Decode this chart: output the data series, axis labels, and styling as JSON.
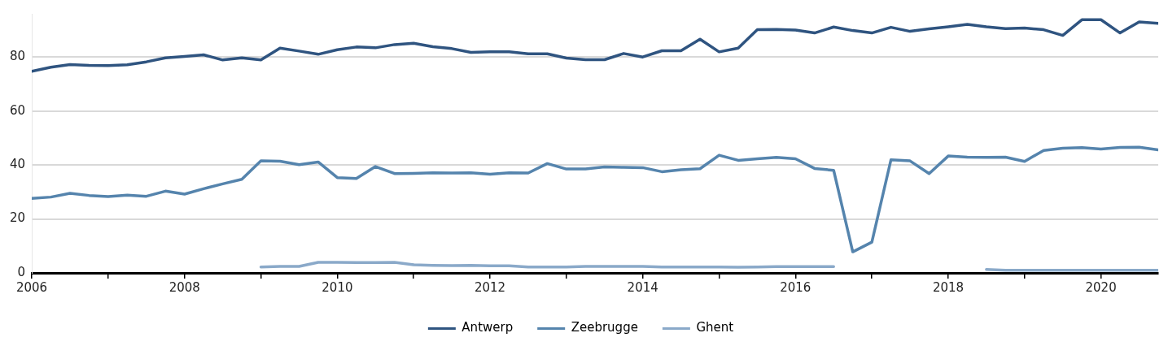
{
  "chart_data": {
    "type": "line",
    "x": [
      2006,
      2006.25,
      2006.5,
      2006.75,
      2007,
      2007.25,
      2007.5,
      2007.75,
      2008,
      2008.25,
      2008.5,
      2008.75,
      2009,
      2009.25,
      2009.5,
      2009.75,
      2010,
      2010.25,
      2010.5,
      2010.75,
      2011,
      2011.25,
      2011.5,
      2011.75,
      2012,
      2012.25,
      2012.5,
      2012.75,
      2013,
      2013.25,
      2013.5,
      2013.75,
      2014,
      2014.25,
      2014.5,
      2014.75,
      2015,
      2015.25,
      2015.5,
      2015.75,
      2016,
      2016.25,
      2016.5,
      2016.75,
      2017,
      2017.25,
      2017.5,
      2017.75,
      2018,
      2018.25,
      2018.5,
      2018.75,
      2019,
      2019.25,
      2019.5,
      2019.75,
      2020,
      2020.25,
      2020.5,
      2020.75
    ],
    "series": [
      {
        "name": "Antwerp",
        "color": "#2f5480",
        "values": [
          74.7,
          76.2,
          77.2,
          76.9,
          76.8,
          77.1,
          78.2,
          79.7,
          80.2,
          80.8,
          78.9,
          79.7,
          78.9,
          83.3,
          82.2,
          81.0,
          82.7,
          83.7,
          83.4,
          84.6,
          85.1,
          83.8,
          83.1,
          81.7,
          81.9,
          81.9,
          81.2,
          81.2,
          79.6,
          79.0,
          79.0,
          81.3,
          80.0,
          82.3,
          82.3,
          86.6,
          81.9,
          83.3,
          90.1,
          90.2,
          90.0,
          88.9,
          91.1,
          89.8,
          88.9,
          91.0,
          89.5,
          90.4,
          91.2,
          92.1,
          91.2,
          90.5,
          90.7,
          90.1,
          88.0,
          93.8,
          93.8,
          88.9,
          93.0,
          92.5
        ]
      },
      {
        "name": "Zeebrugge",
        "color": "#5584ad",
        "values": [
          27.6,
          28.1,
          29.5,
          28.7,
          28.3,
          28.8,
          28.4,
          30.3,
          29.2,
          31.2,
          33.0,
          34.7,
          41.5,
          41.4,
          40.1,
          41.1,
          35.3,
          35.0,
          39.4,
          36.8,
          36.9,
          37.1,
          37.0,
          37.1,
          36.6,
          37.1,
          37.0,
          40.5,
          38.5,
          38.5,
          39.3,
          39.1,
          39.0,
          37.5,
          38.2,
          38.6,
          43.6,
          41.7,
          42.3,
          42.8,
          42.3,
          38.7,
          38.0,
          7.8,
          11.4,
          41.9,
          41.5,
          36.8,
          43.3,
          42.9,
          42.8,
          42.9,
          41.3,
          45.4,
          46.2,
          46.4,
          45.9,
          46.5,
          46.6,
          45.6
        ]
      },
      {
        "name": "Ghent",
        "color": "#8aa9c9",
        "values": [
          null,
          null,
          null,
          null,
          null,
          null,
          null,
          null,
          null,
          null,
          null,
          null,
          2.2,
          2.4,
          2.4,
          3.9,
          3.9,
          3.8,
          3.8,
          3.9,
          3.0,
          2.8,
          2.7,
          2.8,
          2.6,
          2.6,
          2.2,
          2.2,
          2.2,
          2.4,
          2.4,
          2.4,
          2.4,
          2.2,
          2.2,
          2.2,
          2.2,
          2.1,
          2.2,
          2.3,
          2.3,
          2.3,
          2.3,
          null,
          null,
          null,
          null,
          null,
          null,
          null,
          1.3,
          1.0,
          1.0,
          1.0,
          1.0,
          1.0,
          1.0,
          1.0,
          1.0,
          1.0
        ]
      }
    ],
    "xlim": [
      2006,
      2020.75
    ],
    "xticks": [
      2006,
      {
        "value": 2007,
        "label": null
      },
      2008,
      {
        "value": 2009,
        "label": null
      },
      2010,
      {
        "value": 2011,
        "label": null
      },
      2012,
      {
        "value": 2013,
        "label": null
      },
      2014,
      {
        "value": 2015,
        "label": null
      },
      2016,
      {
        "value": 2017,
        "label": null
      },
      2018,
      {
        "value": 2019,
        "label": null
      },
      2020
    ],
    "ylim": [
      0,
      96
    ],
    "yticks": [
      0,
      20,
      40,
      60,
      80
    ],
    "grid": "y",
    "legend": "bottom",
    "marker": "none",
    "line_style": "solid"
  }
}
